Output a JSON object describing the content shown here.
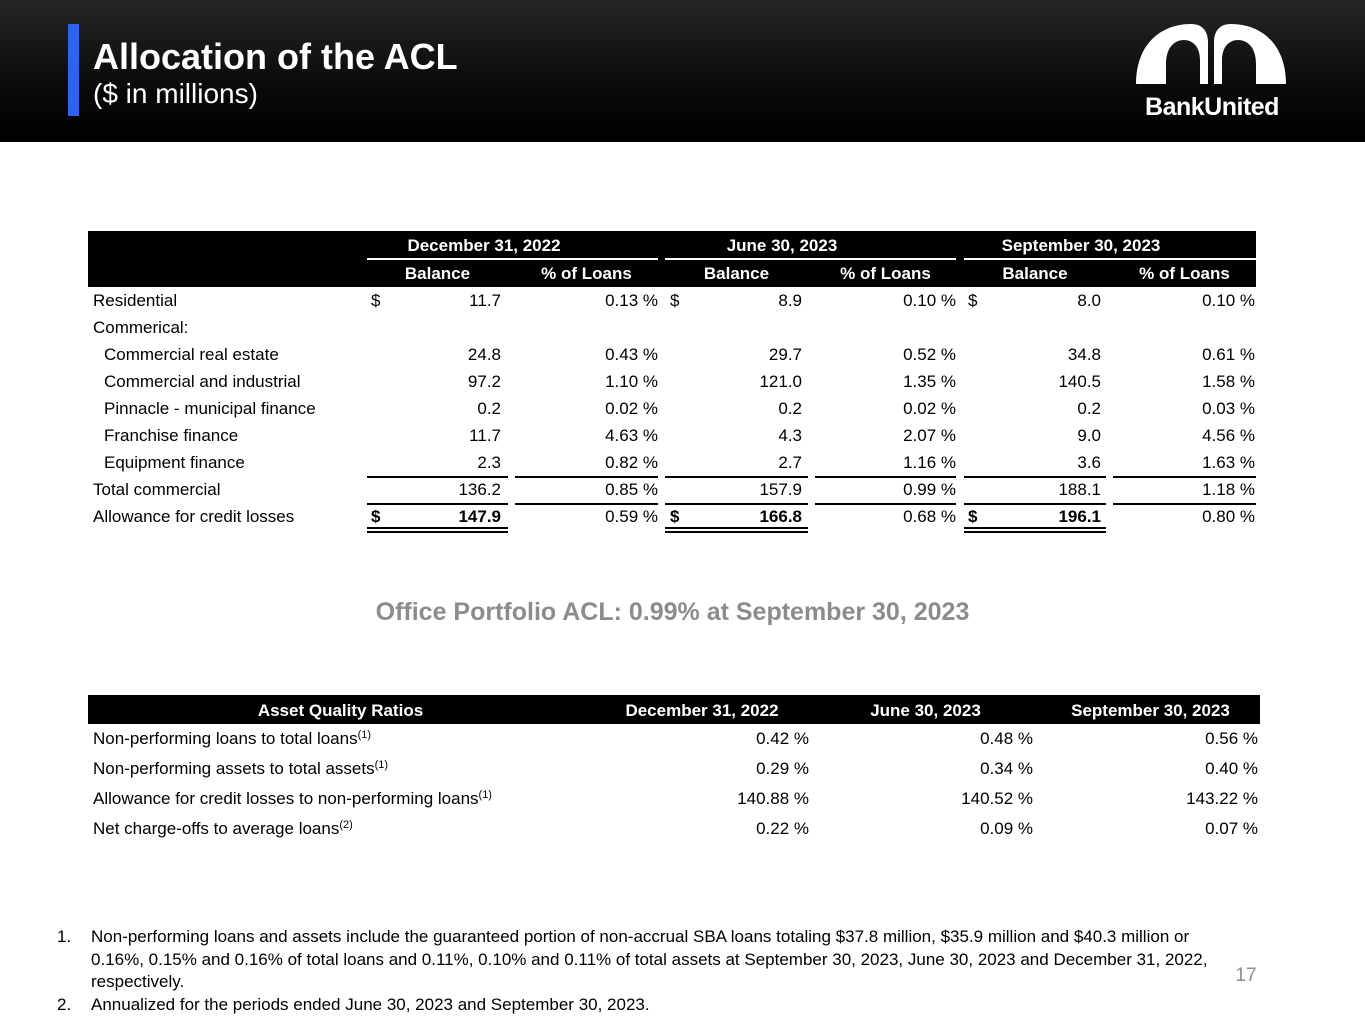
{
  "header": {
    "title": "Allocation of the ACL",
    "subtitle": "($ in millions)",
    "logo_text": "BankUnited",
    "accent_color": "#2f62f0"
  },
  "acl_table": {
    "periods": [
      "December 31, 2022",
      "June 30, 2023",
      "September 30, 2023"
    ],
    "subheaders": {
      "balance": "Balance",
      "pct": "% of Loans"
    },
    "rows": {
      "residential": {
        "label": "Residential",
        "d1": "$",
        "b1": "11.7",
        "p1": "0.13 %",
        "d2": "$",
        "b2": "8.9",
        "p2": "0.10 %",
        "d3": "$",
        "b3": "8.0",
        "p3": "0.10 %"
      },
      "commercial_header": {
        "label": "Commerical:"
      },
      "cre": {
        "label": "Commercial real estate",
        "b1": "24.8",
        "p1": "0.43 %",
        "b2": "29.7",
        "p2": "0.52 %",
        "b3": "34.8",
        "p3": "0.61 %"
      },
      "ci": {
        "label": "Commercial and industrial",
        "b1": "97.2",
        "p1": "1.10 %",
        "b2": "121.0",
        "p2": "1.35 %",
        "b3": "140.5",
        "p3": "1.58 %"
      },
      "pinnacle": {
        "label": "Pinnacle - municipal finance",
        "b1": "0.2",
        "p1": "0.02 %",
        "b2": "0.2",
        "p2": "0.02 %",
        "b3": "0.2",
        "p3": "0.03 %"
      },
      "franchise": {
        "label": "Franchise finance",
        "b1": "11.7",
        "p1": "4.63 %",
        "b2": "4.3",
        "p2": "2.07 %",
        "b3": "9.0",
        "p3": "4.56 %"
      },
      "equipment": {
        "label": "Equipment finance",
        "b1": "2.3",
        "p1": "0.82 %",
        "b2": "2.7",
        "p2": "1.16 %",
        "b3": "3.6",
        "p3": "1.63 %"
      },
      "total_commercial": {
        "label": "Total commercial",
        "b1": "136.2",
        "p1": "0.85 %",
        "b2": "157.9",
        "p2": "0.99 %",
        "b3": "188.1",
        "p3": "1.18 %"
      },
      "acl": {
        "label": "Allowance for credit losses",
        "d1": "$",
        "b1": "147.9",
        "p1": "0.59 %",
        "d2": "$",
        "b2": "166.8",
        "p2": "0.68 %",
        "d3": "$",
        "b3": "196.1",
        "p3": "0.80 %"
      }
    }
  },
  "callout": "Office Portfolio ACL:  0.99% at September 30, 2023",
  "asset_quality": {
    "headers": [
      "Asset Quality Ratios",
      "December 31, 2022",
      "June 30, 2023",
      "September 30, 2023"
    ],
    "rows": [
      {
        "label": "Non-performing loans to total loans",
        "note": "(1)",
        "values": [
          "0.42 %",
          "0.48 %",
          "0.56 %"
        ]
      },
      {
        "label": "Non-performing assets to total assets",
        "note": "(1)",
        "values": [
          "0.29 %",
          "0.34 %",
          "0.40 %"
        ]
      },
      {
        "label": "Allowance for credit losses to non-performing loans",
        "note": "(1)",
        "values": [
          "140.88 %",
          "140.52 %",
          "143.22 %"
        ]
      },
      {
        "label": "Net charge-offs to average loans",
        "note": "(2)",
        "values": [
          "0.22 %",
          "0.09 %",
          "0.07 %"
        ]
      }
    ]
  },
  "footnotes": [
    {
      "num": "1.",
      "text": "Non-performing loans and assets include the guaranteed portion of non-accrual SBA loans totaling $37.8 million, $35.9 million and $40.3 million or 0.16%, 0.15% and 0.16% of total loans and 0.11%, 0.10% and 0.11% of total assets at September 30, 2023, June 30, 2023 and December 31, 2022, respectively."
    },
    {
      "num": "2.",
      "text": "Annualized for the periods ended June 30, 2023 and September 30, 2023."
    }
  ],
  "page_number": "17"
}
